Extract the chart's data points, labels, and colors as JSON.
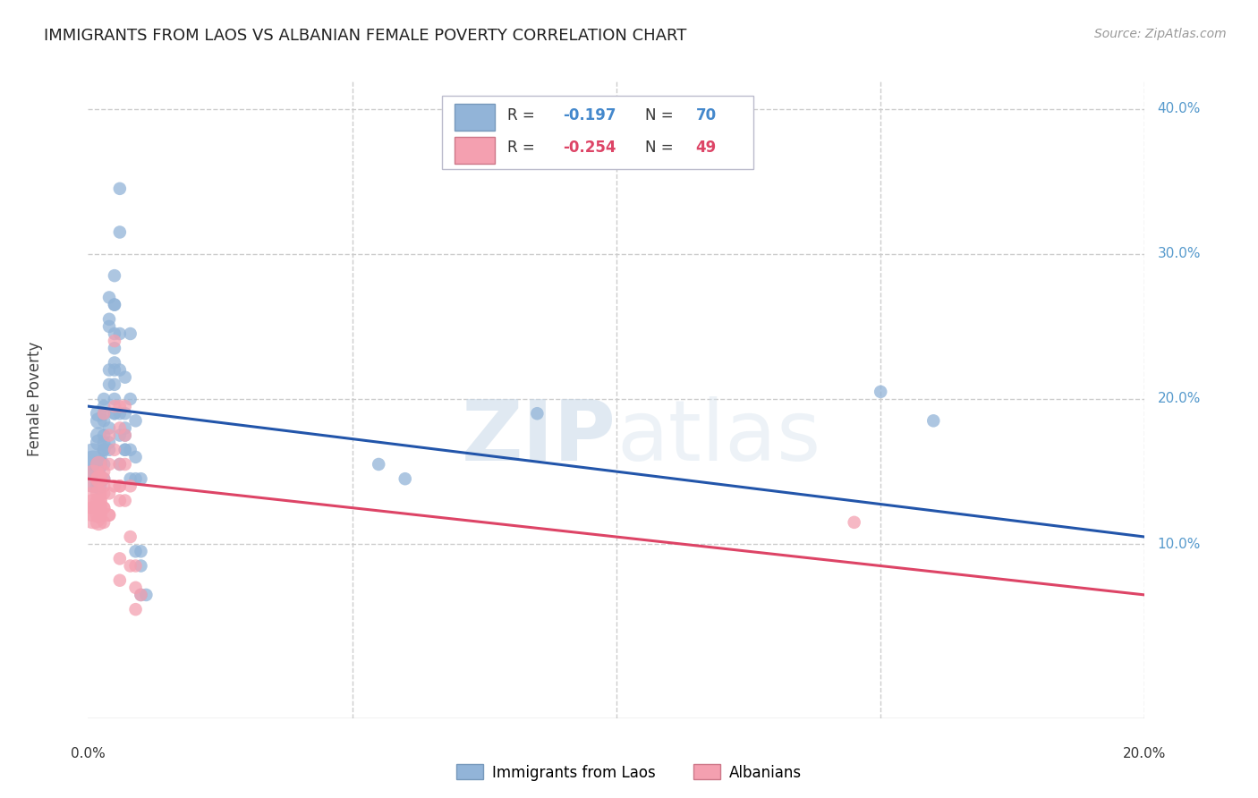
{
  "title": "IMMIGRANTS FROM LAOS VS ALBANIAN FEMALE POVERTY CORRELATION CHART",
  "source": "Source: ZipAtlas.com",
  "ylabel": "Female Poverty",
  "xlim": [
    0.0,
    0.2
  ],
  "ylim": [
    -0.02,
    0.42
  ],
  "legend_label1": "Immigrants from Laos",
  "legend_label2": "Albanians",
  "blue_color": "#92B4D8",
  "pink_color": "#F4A0B0",
  "blue_line_color": "#2255AA",
  "pink_line_color": "#DD4466",
  "blue_scatter": [
    [
      0.001,
      0.155
    ],
    [
      0.001,
      0.145
    ],
    [
      0.001,
      0.16
    ],
    [
      0.002,
      0.17
    ],
    [
      0.002,
      0.155
    ],
    [
      0.002,
      0.145
    ],
    [
      0.002,
      0.19
    ],
    [
      0.002,
      0.175
    ],
    [
      0.002,
      0.185
    ],
    [
      0.002,
      0.14
    ],
    [
      0.003,
      0.165
    ],
    [
      0.003,
      0.155
    ],
    [
      0.003,
      0.145
    ],
    [
      0.003,
      0.185
    ],
    [
      0.003,
      0.17
    ],
    [
      0.003,
      0.2
    ],
    [
      0.003,
      0.195
    ],
    [
      0.003,
      0.19
    ],
    [
      0.003,
      0.175
    ],
    [
      0.003,
      0.165
    ],
    [
      0.004,
      0.25
    ],
    [
      0.004,
      0.22
    ],
    [
      0.004,
      0.21
    ],
    [
      0.004,
      0.255
    ],
    [
      0.004,
      0.18
    ],
    [
      0.004,
      0.17
    ],
    [
      0.004,
      0.165
    ],
    [
      0.004,
      0.27
    ],
    [
      0.005,
      0.265
    ],
    [
      0.005,
      0.245
    ],
    [
      0.005,
      0.225
    ],
    [
      0.005,
      0.2
    ],
    [
      0.005,
      0.19
    ],
    [
      0.005,
      0.285
    ],
    [
      0.005,
      0.265
    ],
    [
      0.005,
      0.235
    ],
    [
      0.005,
      0.22
    ],
    [
      0.005,
      0.21
    ],
    [
      0.005,
      0.19
    ],
    [
      0.006,
      0.315
    ],
    [
      0.006,
      0.245
    ],
    [
      0.006,
      0.22
    ],
    [
      0.006,
      0.19
    ],
    [
      0.006,
      0.175
    ],
    [
      0.006,
      0.155
    ],
    [
      0.006,
      0.345
    ],
    [
      0.007,
      0.19
    ],
    [
      0.007,
      0.175
    ],
    [
      0.007,
      0.165
    ],
    [
      0.007,
      0.215
    ],
    [
      0.007,
      0.18
    ],
    [
      0.007,
      0.165
    ],
    [
      0.008,
      0.145
    ],
    [
      0.008,
      0.245
    ],
    [
      0.008,
      0.2
    ],
    [
      0.008,
      0.165
    ],
    [
      0.009,
      0.145
    ],
    [
      0.009,
      0.095
    ],
    [
      0.009,
      0.185
    ],
    [
      0.009,
      0.16
    ],
    [
      0.01,
      0.145
    ],
    [
      0.01,
      0.085
    ],
    [
      0.01,
      0.065
    ],
    [
      0.01,
      0.095
    ],
    [
      0.011,
      0.065
    ],
    [
      0.055,
      0.155
    ],
    [
      0.06,
      0.145
    ],
    [
      0.085,
      0.19
    ],
    [
      0.15,
      0.205
    ],
    [
      0.16,
      0.185
    ]
  ],
  "pink_scatter": [
    [
      0.001,
      0.145
    ],
    [
      0.001,
      0.13
    ],
    [
      0.001,
      0.125
    ],
    [
      0.001,
      0.12
    ],
    [
      0.002,
      0.145
    ],
    [
      0.002,
      0.13
    ],
    [
      0.002,
      0.125
    ],
    [
      0.002,
      0.12
    ],
    [
      0.002,
      0.115
    ],
    [
      0.002,
      0.155
    ],
    [
      0.002,
      0.145
    ],
    [
      0.002,
      0.135
    ],
    [
      0.003,
      0.125
    ],
    [
      0.003,
      0.115
    ],
    [
      0.003,
      0.19
    ],
    [
      0.003,
      0.15
    ],
    [
      0.003,
      0.14
    ],
    [
      0.003,
      0.125
    ],
    [
      0.003,
      0.145
    ],
    [
      0.003,
      0.135
    ],
    [
      0.004,
      0.12
    ],
    [
      0.004,
      0.175
    ],
    [
      0.004,
      0.155
    ],
    [
      0.004,
      0.135
    ],
    [
      0.004,
      0.12
    ],
    [
      0.005,
      0.24
    ],
    [
      0.005,
      0.195
    ],
    [
      0.005,
      0.165
    ],
    [
      0.005,
      0.14
    ],
    [
      0.006,
      0.155
    ],
    [
      0.006,
      0.14
    ],
    [
      0.006,
      0.13
    ],
    [
      0.006,
      0.195
    ],
    [
      0.006,
      0.18
    ],
    [
      0.006,
      0.14
    ],
    [
      0.006,
      0.09
    ],
    [
      0.006,
      0.075
    ],
    [
      0.007,
      0.195
    ],
    [
      0.007,
      0.175
    ],
    [
      0.007,
      0.155
    ],
    [
      0.007,
      0.13
    ],
    [
      0.008,
      0.14
    ],
    [
      0.008,
      0.105
    ],
    [
      0.008,
      0.085
    ],
    [
      0.009,
      0.085
    ],
    [
      0.009,
      0.07
    ],
    [
      0.009,
      0.055
    ],
    [
      0.01,
      0.065
    ],
    [
      0.145,
      0.115
    ]
  ],
  "blue_trend": [
    0.0,
    0.195,
    0.2,
    0.105
  ],
  "pink_trend": [
    0.0,
    0.145,
    0.2,
    0.065
  ],
  "watermark_zip": "ZIP",
  "watermark_atlas": "atlas",
  "background_color": "#FFFFFF",
  "grid_color": "#CCCCCC",
  "right_label_color": "#5599CC"
}
